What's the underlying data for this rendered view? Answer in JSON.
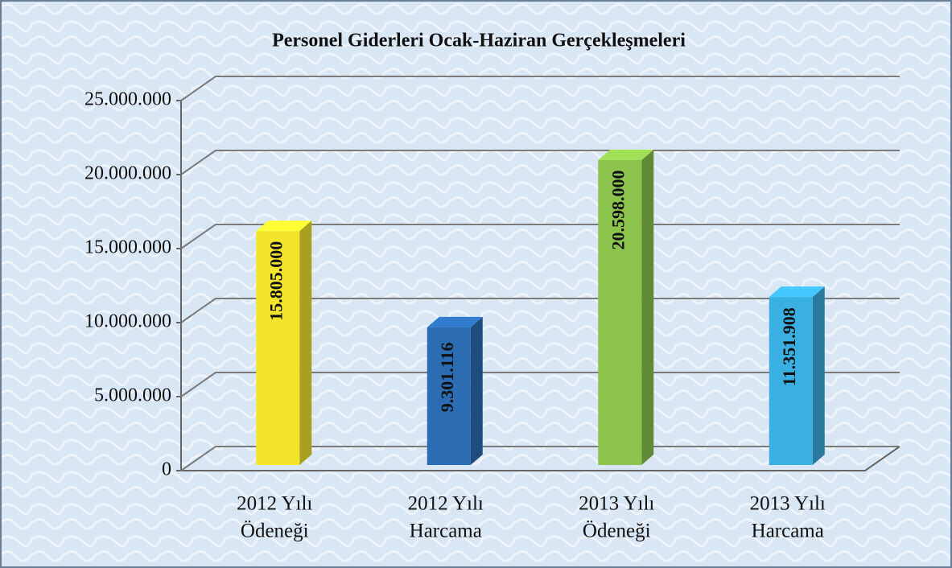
{
  "chart_data": {
    "type": "bar3d",
    "title": "Personel Giderleri  Ocak-Haziran  Gerçekleşmeleri",
    "categories": [
      [
        "2012 Yılı",
        "Ödeneği"
      ],
      [
        "2012 Yılı",
        "Harcama"
      ],
      [
        "2013 Yılı",
        "Ödeneği"
      ],
      [
        "2013 Yılı",
        "Harcama"
      ]
    ],
    "values": [
      15805000,
      9301116,
      20598000,
      11351908
    ],
    "value_labels": [
      "15.805.000",
      "9.301.116",
      "20.598.000",
      "11.351.908"
    ],
    "colors": [
      "#f3e52c",
      "#2b6cb3",
      "#8cc34c",
      "#3aafe2"
    ],
    "ylim": [
      0,
      25000000
    ],
    "yticks": [
      0,
      {
        "value": 5000000,
        "label": "5.000.000"
      },
      {
        "value": 10000000,
        "label": "10.000.000"
      },
      {
        "value": 15000000,
        "label": "15.000.000"
      },
      {
        "value": 20000000,
        "label": "20.000.000"
      },
      {
        "value": 25000000,
        "label": "25.000.000"
      }
    ],
    "grid": true
  }
}
